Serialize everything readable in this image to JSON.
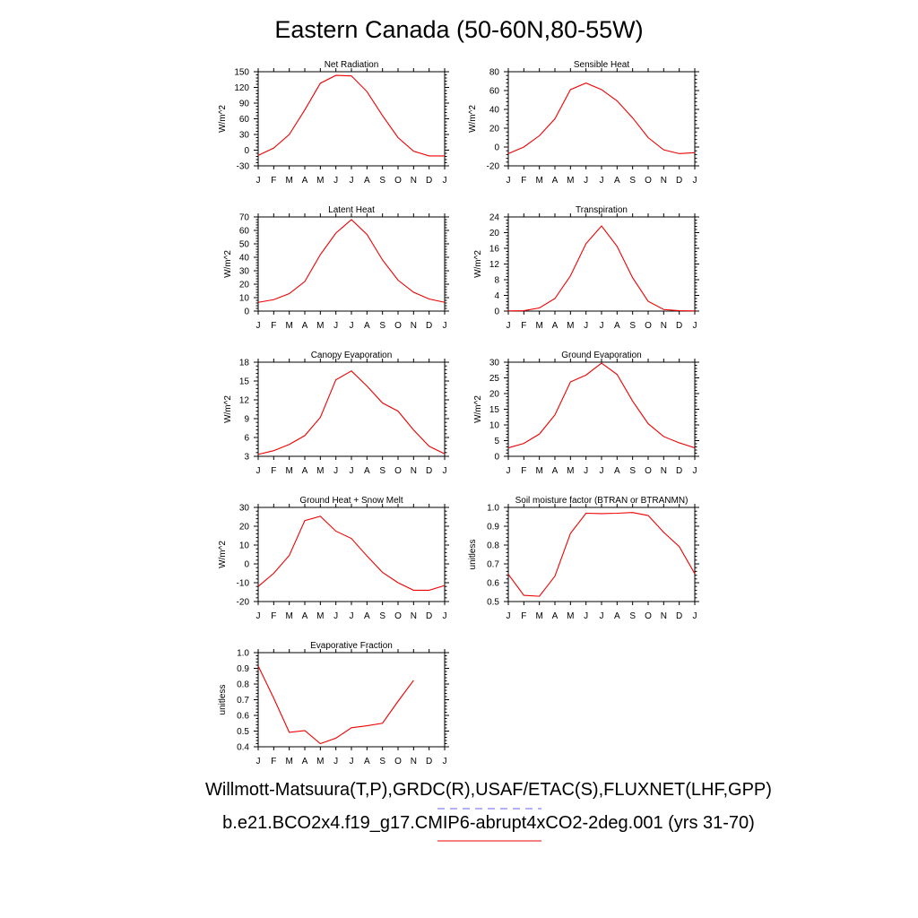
{
  "title": "Eastern Canada (50-60N,80-55W)",
  "colors": {
    "model_line": "#ee0000",
    "obs_line": "#6666ee"
  },
  "months": [
    "J",
    "F",
    "M",
    "A",
    "M",
    "J",
    "J",
    "A",
    "S",
    "O",
    "N",
    "D",
    "J"
  ],
  "legend": {
    "observations": "Willmott-Matsuura(T,P),GRDC(R),USAF/ETAC(S),FLUXNET(LHF,GPP)",
    "model": "b.e21.BCO2x4.f19_g17.CMIP6-abrupt4xCO2-2deg.001 (yrs 31-70)"
  },
  "chart_data": [
    {
      "type": "line",
      "title": "Net Radiation",
      "ylabel": "W/m^2",
      "ylim": [
        -30,
        150
      ],
      "yticks": [
        -30,
        0,
        30,
        60,
        90,
        120,
        150
      ],
      "series": [
        {
          "values": [
            -10,
            4,
            30,
            77,
            128,
            143,
            142,
            112,
            66,
            24,
            -2,
            -11,
            -11
          ]
        }
      ]
    },
    {
      "type": "line",
      "title": "Sensible Heat",
      "ylabel": "W/m^2",
      "ylim": [
        -20,
        80
      ],
      "yticks": [
        -20,
        0,
        20,
        40,
        60,
        80
      ],
      "series": [
        {
          "values": [
            -7,
            0,
            12,
            30,
            61,
            68,
            61,
            49,
            31,
            10,
            -3,
            -7,
            -6
          ]
        }
      ]
    },
    {
      "type": "line",
      "title": "Latent Heat",
      "ylabel": "W/m^2",
      "ylim": [
        0,
        70
      ],
      "yticks": [
        0,
        10,
        20,
        30,
        40,
        50,
        60,
        70
      ],
      "series": [
        {
          "values": [
            6.5,
            8.5,
            13,
            22,
            42,
            58,
            68,
            57,
            38,
            23,
            14,
            9,
            6.5
          ]
        }
      ]
    },
    {
      "type": "line",
      "title": "Transpiration",
      "ylabel": "W/m^2",
      "ylim": [
        0,
        24
      ],
      "yticks": [
        0,
        4,
        8,
        12,
        16,
        20,
        24
      ],
      "series": [
        {
          "values": [
            0.05,
            0.1,
            0.8,
            3.2,
            9,
            17.2,
            21.7,
            16.5,
            8.5,
            2.5,
            0.4,
            0.1,
            0.05
          ]
        }
      ]
    },
    {
      "type": "line",
      "title": "Canopy Evaporation",
      "ylabel": "W/m^2",
      "ylim": [
        3,
        18
      ],
      "yticks": [
        3,
        6,
        9,
        12,
        15,
        18
      ],
      "series": [
        {
          "values": [
            3.3,
            3.9,
            4.9,
            6.3,
            9.2,
            15.2,
            16.6,
            14.2,
            11.5,
            10.2,
            7.2,
            4.6,
            3.4
          ]
        }
      ]
    },
    {
      "type": "line",
      "title": "Ground Evaporation",
      "ylabel": "W/m^2",
      "ylim": [
        0,
        30
      ],
      "yticks": [
        0,
        5,
        10,
        15,
        20,
        25,
        30
      ],
      "series": [
        {
          "values": [
            2.7,
            4.1,
            7.1,
            13.2,
            23.7,
            25.9,
            29.7,
            26.1,
            17.6,
            10.4,
            6.3,
            4.3,
            2.7
          ]
        }
      ]
    },
    {
      "type": "line",
      "title": "Ground Heat + Snow Melt",
      "ylabel": "W/m^2",
      "ylim": [
        -20,
        30
      ],
      "yticks": [
        -20,
        -10,
        0,
        10,
        20,
        30
      ],
      "series": [
        {
          "values": [
            -12,
            -5,
            4.5,
            23,
            25.3,
            17.4,
            13.5,
            4.2,
            -4.5,
            -10,
            -14,
            -14,
            -11.5
          ]
        }
      ]
    },
    {
      "type": "line",
      "title": "Soil moisture factor (BTRAN or BTRANMN)",
      "ylabel": "unitless",
      "ylim": [
        0.5,
        1.0
      ],
      "yticks": [
        0.5,
        0.6,
        0.7,
        0.8,
        0.9,
        1.0
      ],
      "series": [
        {
          "values": [
            0.645,
            0.533,
            0.528,
            0.635,
            0.862,
            0.969,
            0.967,
            0.969,
            0.973,
            0.957,
            0.868,
            0.792,
            0.648
          ]
        }
      ]
    },
    {
      "type": "line",
      "title": "Evaporative Fraction",
      "ylabel": "unitless",
      "ylim": [
        0.4,
        1.0
      ],
      "yticks": [
        0.4,
        0.5,
        0.6,
        0.7,
        0.8,
        0.9,
        1.0
      ],
      "series": [
        {
          "values": [
            0.915,
            0.71,
            0.492,
            0.503,
            0.42,
            0.455,
            0.521,
            0.534,
            0.55,
            0.69,
            0.823,
            null,
            null
          ]
        }
      ]
    }
  ]
}
